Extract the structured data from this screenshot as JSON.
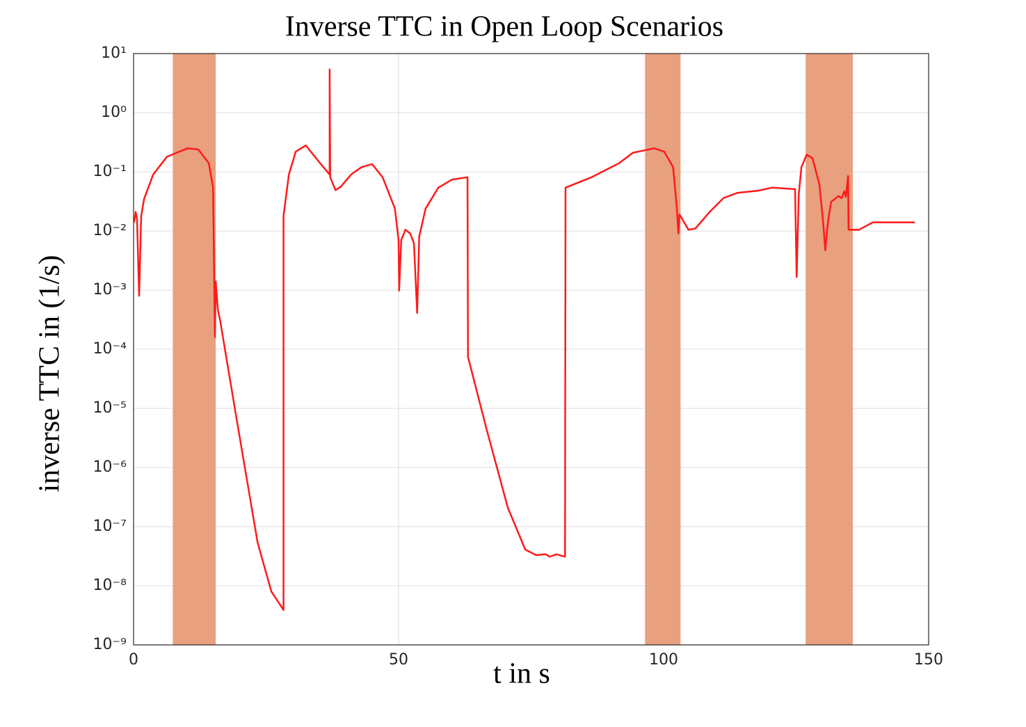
{
  "chart_data": {
    "type": "line",
    "title": "Inverse TTC in Open Loop Scenarios",
    "x_label": "t in s",
    "y_label": "inverse TTC in (1/s)",
    "log_y": true,
    "grid": true,
    "xlim": [
      0,
      150
    ],
    "xticks": [
      0,
      50,
      100,
      150
    ],
    "ylim": [
      1e-09,
      10
    ],
    "yticks": [
      {
        "value": 1e-09,
        "label": "10⁻⁹"
      },
      {
        "value": 1e-08,
        "label": "10⁻⁸"
      },
      {
        "value": 1e-07,
        "label": "10⁻⁷"
      },
      {
        "value": 1e-06,
        "label": "10⁻⁶"
      },
      {
        "value": 1e-05,
        "label": "10⁻⁵"
      },
      {
        "value": 0.0001,
        "label": "10⁻⁴"
      },
      {
        "value": 0.001,
        "label": "10⁻³"
      },
      {
        "value": 0.01,
        "label": "10⁻²"
      },
      {
        "value": 0.1,
        "label": "10⁻¹"
      },
      {
        "value": 1,
        "label": "10⁰"
      },
      {
        "value": 10,
        "label": "10¹"
      }
    ],
    "bands": [
      [
        7.4,
        15.5
      ],
      [
        96.5,
        103.2
      ],
      [
        126.8,
        135.7
      ]
    ],
    "band_color": "#e8a07e",
    "series": [
      {
        "color": "#ff1a1a",
        "x": [
          0.1,
          0.4,
          0.66,
          1.05,
          1.44,
          2.0,
          3.7,
          6.3,
          10.2,
          12.2,
          14.2,
          15.0,
          15.35,
          15.5,
          15.9,
          16.3,
          19.4,
          23.4,
          26.0,
          28.3,
          28.3,
          29.3,
          30.6,
          32.5,
          35.2,
          37.0,
          37.0,
          37.1,
          38.1,
          39.1,
          41.1,
          43.0,
          45.0,
          47.0,
          49.3,
          50.0,
          50.1,
          50.5,
          51.3,
          52.2,
          52.9,
          53.5,
          53.9,
          55.1,
          57.5,
          60.1,
          63.0,
          63.1,
          66.7,
          70.6,
          73.9,
          75.9,
          77.8,
          78.5,
          79.8,
          81.4,
          81.5,
          86.4,
          91.6,
          94.2,
          98.2,
          100.1,
          101.8,
          102.5,
          102.8,
          103.0,
          104.7,
          106.0,
          108.7,
          111.3,
          113.9,
          117.8,
          120.5,
          124.8,
          125.1,
          125.5,
          126.0,
          127.0,
          128.1,
          129.4,
          130.1,
          130.5,
          131.0,
          131.6,
          133.0,
          133.6,
          134.1,
          134.4,
          134.8,
          134.9,
          136.9,
          138.8,
          139.5,
          147.4
        ],
        "values": [
          0.014,
          0.021,
          0.016,
          0.0008,
          0.018,
          0.035,
          0.09,
          0.18,
          0.25,
          0.24,
          0.14,
          0.054,
          0.00016,
          0.0014,
          0.00047,
          0.00032,
          7e-06,
          5.4e-08,
          8e-09,
          3.9e-09,
          0.018,
          0.09,
          0.22,
          0.28,
          0.14,
          0.09,
          5.4,
          0.081,
          0.049,
          0.056,
          0.091,
          0.12,
          0.135,
          0.081,
          0.024,
          0.007,
          0.00098,
          0.007,
          0.0105,
          0.009,
          0.0062,
          0.00041,
          0.0081,
          0.024,
          0.054,
          0.074,
          0.081,
          7.4e-05,
          4.1e-06,
          2.1e-07,
          4.1e-08,
          3.3e-08,
          3.4e-08,
          3.1e-08,
          3.4e-08,
          3.1e-08,
          0.054,
          0.081,
          0.14,
          0.21,
          0.25,
          0.22,
          0.12,
          0.024,
          0.0091,
          0.019,
          0.0105,
          0.011,
          0.021,
          0.036,
          0.044,
          0.048,
          0.054,
          0.051,
          0.00166,
          0.041,
          0.12,
          0.195,
          0.17,
          0.061,
          0.0138,
          0.0047,
          0.014,
          0.031,
          0.039,
          0.036,
          0.047,
          0.038,
          0.085,
          0.0105,
          0.0105,
          0.013,
          0.014,
          0.014
        ]
      }
    ]
  }
}
